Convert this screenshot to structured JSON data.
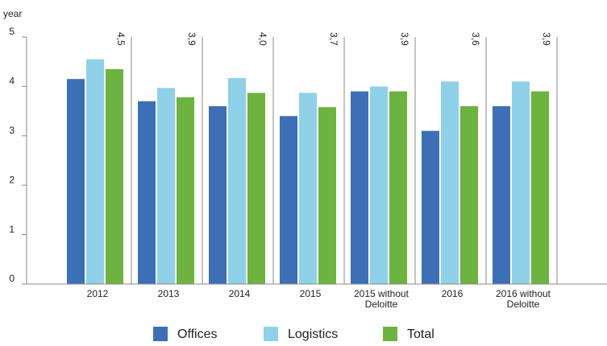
{
  "chart_data": {
    "type": "bar",
    "y_axis_label": "year",
    "categories": [
      "2012",
      "2013",
      "2014",
      "2015",
      "2015 without Deloitte",
      "2016",
      "2016 without Deloitte"
    ],
    "series": [
      {
        "name": "Offices",
        "color": "#3d6fb6",
        "values": [
          4.15,
          3.7,
          3.6,
          3.4,
          3.9,
          3.1,
          3.6
        ]
      },
      {
        "name": "Logistics",
        "color": "#8fd1e8",
        "values": [
          4.55,
          3.97,
          4.17,
          3.87,
          4.0,
          4.1,
          4.1
        ]
      },
      {
        "name": "Total",
        "color": "#6cb33f",
        "values": [
          4.35,
          3.78,
          3.87,
          3.58,
          3.9,
          3.6,
          3.9
        ]
      }
    ],
    "annotations": [
      "4,5",
      "3,9",
      "4,0",
      "3,7",
      "3,9",
      "3,6",
      "3,9"
    ],
    "ylim": [
      0,
      5
    ],
    "yticks": [
      0,
      1,
      2,
      3,
      4,
      5
    ],
    "grid": false,
    "legend": "bottom"
  }
}
